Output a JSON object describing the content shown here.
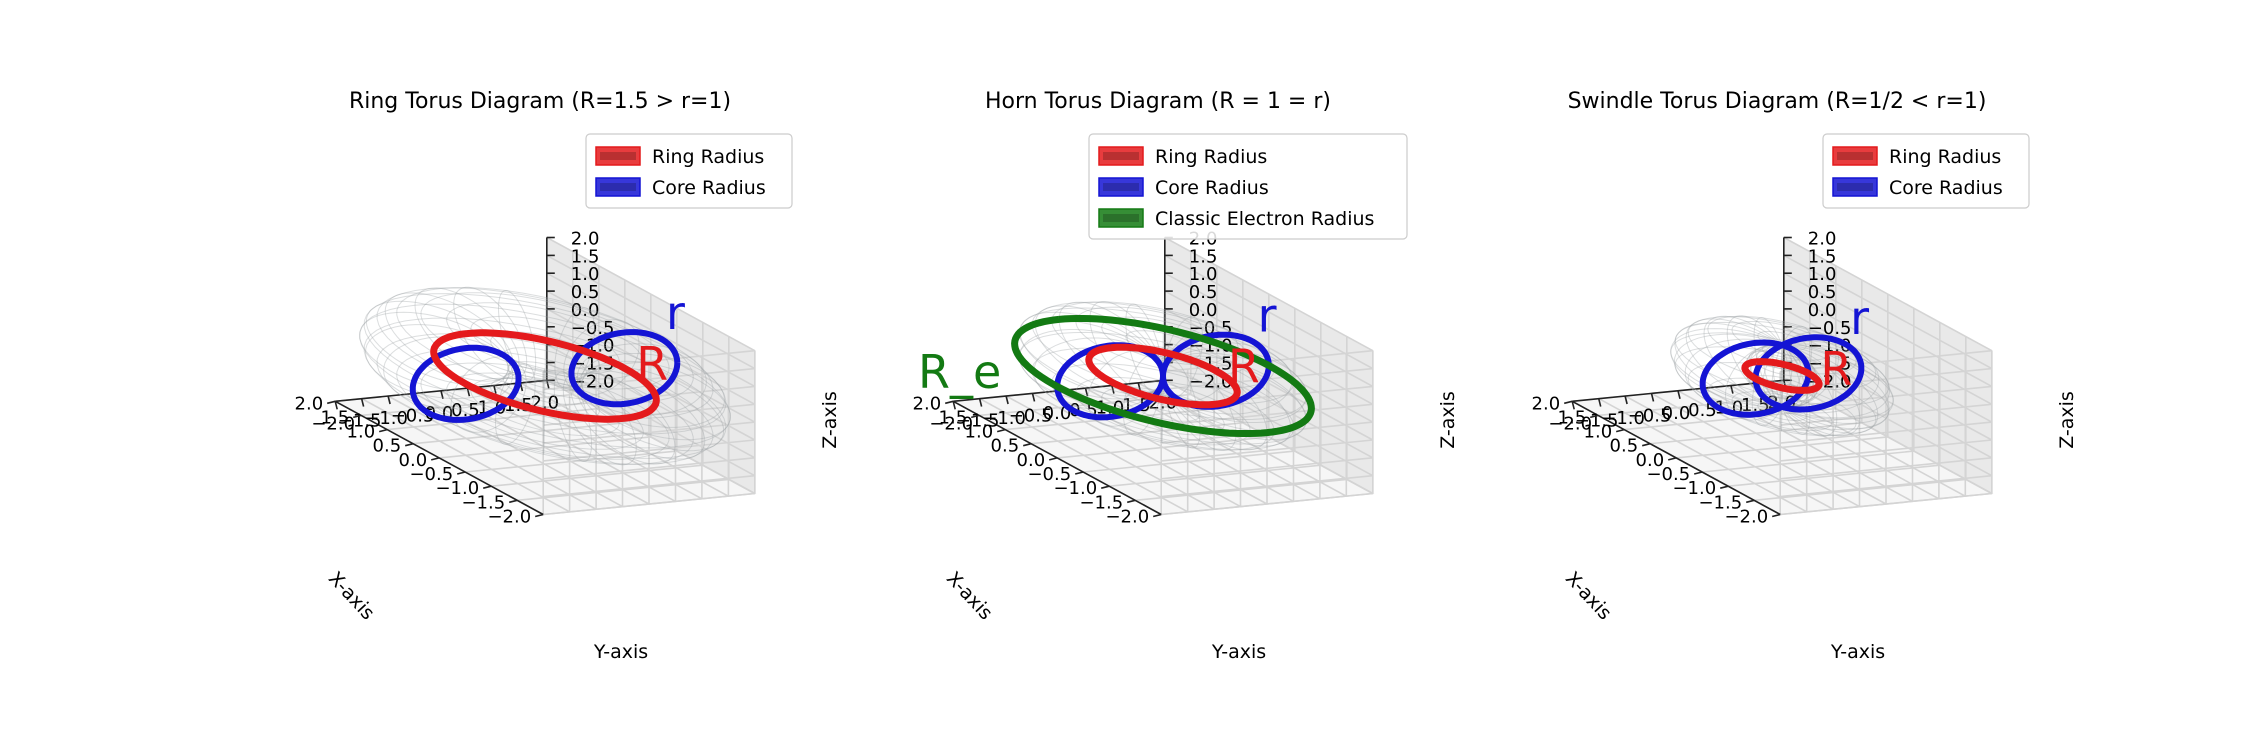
{
  "figure": {
    "panels": [
      {
        "title": "Ring Torus Diagram (R=1.5 > r=1)",
        "R": 1.5,
        "r": 1,
        "legend": [
          {
            "label": "Ring Radius",
            "color": "#e41a1c"
          },
          {
            "label": "Core Radius",
            "color": "#1414d4"
          }
        ],
        "annotations": {
          "ring": "R",
          "core": "r"
        },
        "show_electron": false
      },
      {
        "title": "Horn Torus Diagram (R = 1 = r)",
        "R": 1,
        "r": 1,
        "legend": [
          {
            "label": "Ring Radius",
            "color": "#e41a1c"
          },
          {
            "label": "Core Radius",
            "color": "#1414d4"
          },
          {
            "label": "Classic Electron Radius",
            "color": "#137a13"
          }
        ],
        "annotations": {
          "ring": "R",
          "core": "r",
          "electron": "R_e"
        },
        "show_electron": true
      },
      {
        "title": "Swindle Torus Diagram (R=1/2 < r=1)",
        "R": 0.5,
        "r": 1,
        "legend": [
          {
            "label": "Ring Radius",
            "color": "#e41a1c"
          },
          {
            "label": "Core Radius",
            "color": "#1414d4"
          }
        ],
        "annotations": {
          "ring": "R",
          "core": "r"
        },
        "show_electron": false
      }
    ],
    "axes": {
      "xlabel": "X-axis",
      "ylabel": "Y-axis",
      "zlabel": "Z-axis",
      "ticks": [
        "−2.0",
        "−1.5",
        "−1.0",
        "−0.5",
        "0.0",
        "0.5",
        "1.0",
        "1.5",
        "2.0"
      ],
      "range": [
        -2,
        2
      ]
    },
    "colors": {
      "ring": "#e41a1c",
      "core": "#1414d4",
      "electron": "#137a13",
      "surface": "#9aa0a4",
      "grid": "#d4d4d4"
    }
  }
}
